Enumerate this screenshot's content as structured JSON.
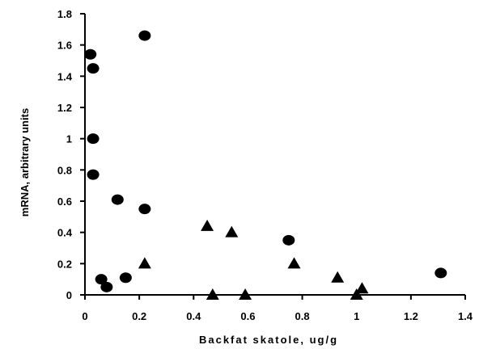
{
  "chart_data": {
    "type": "scatter",
    "xlabel": "Backfat skatole, ug/g",
    "ylabel": "mRNA, arbitrary units",
    "xlim": [
      0,
      1.4
    ],
    "ylim": [
      0,
      1.8
    ],
    "xticks": [
      "0",
      "0.2",
      "0.4",
      "0.6",
      "0.8",
      "1",
      "1.2",
      "1.4"
    ],
    "yticks": [
      "0",
      "0.2",
      "0.4",
      "0.6",
      "0.8",
      "1",
      "1.2",
      "1.4",
      "1.6",
      "1.8"
    ],
    "grid": false,
    "series": [
      {
        "marker": "circle",
        "color": "#000000",
        "points": [
          {
            "x": 0.02,
            "y": 1.54
          },
          {
            "x": 0.03,
            "y": 1.45
          },
          {
            "x": 0.03,
            "y": 1.0
          },
          {
            "x": 0.03,
            "y": 0.77
          },
          {
            "x": 0.22,
            "y": 1.66
          },
          {
            "x": 0.12,
            "y": 0.61
          },
          {
            "x": 0.22,
            "y": 0.55
          },
          {
            "x": 0.06,
            "y": 0.1
          },
          {
            "x": 0.08,
            "y": 0.05
          },
          {
            "x": 0.15,
            "y": 0.11
          },
          {
            "x": 0.75,
            "y": 0.35
          },
          {
            "x": 1.31,
            "y": 0.14
          }
        ]
      },
      {
        "marker": "triangle",
        "color": "#000000",
        "points": [
          {
            "x": 0.22,
            "y": 0.2
          },
          {
            "x": 0.45,
            "y": 0.44
          },
          {
            "x": 0.47,
            "y": 0.0
          },
          {
            "x": 0.54,
            "y": 0.4
          },
          {
            "x": 0.59,
            "y": 0.0
          },
          {
            "x": 0.77,
            "y": 0.2
          },
          {
            "x": 0.93,
            "y": 0.11
          },
          {
            "x": 1.0,
            "y": 0.0
          },
          {
            "x": 1.02,
            "y": 0.04
          }
        ]
      }
    ]
  }
}
